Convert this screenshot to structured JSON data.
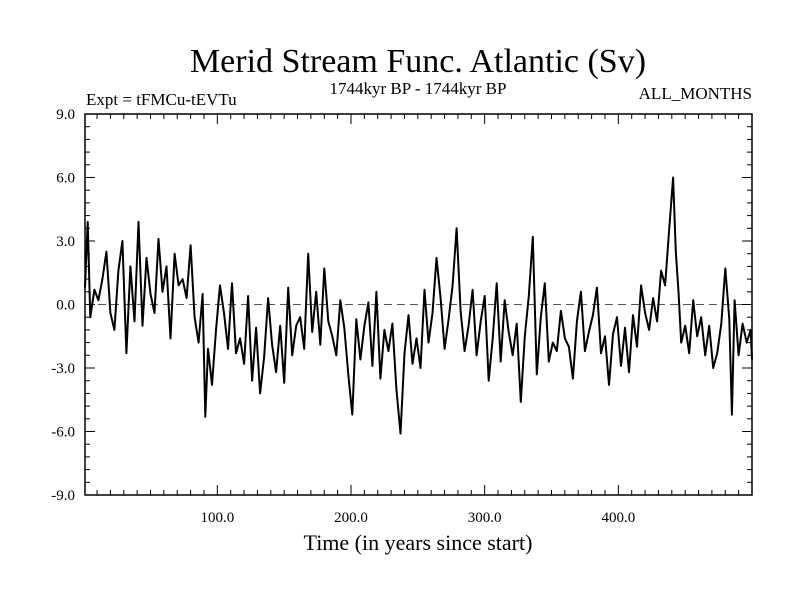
{
  "chart_data": {
    "type": "line",
    "title": "Merid Stream Func. Atlantic (Sv)",
    "subtitle_left": "Expt = tFMCu-tEVTu",
    "subtitle_center": "1744kyr BP - 1744kyr BP",
    "subtitle_right": "ALL_MONTHS",
    "xlabel": "Time (in years since start)",
    "ylabel": "",
    "xlim": [
      1,
      500
    ],
    "ylim": [
      -9,
      9
    ],
    "x_ticks": [
      {
        "value": 100,
        "label": "100.0"
      },
      {
        "value": 200,
        "label": "200.0"
      },
      {
        "value": 300,
        "label": "300.0"
      },
      {
        "value": 400,
        "label": "400.0"
      }
    ],
    "y_ticks": [
      {
        "value": 9,
        "label": "9.0"
      },
      {
        "value": 6,
        "label": "6.0"
      },
      {
        "value": 3,
        "label": "3.0"
      },
      {
        "value": 0,
        "label": "0.0"
      },
      {
        "value": -3,
        "label": "-3.0"
      },
      {
        "value": -6,
        "label": "-6.0"
      },
      {
        "value": -9,
        "label": "-9.0"
      }
    ],
    "reference_line": 0,
    "series": [
      {
        "name": "Merid Stream Func. Atlantic",
        "x": [
          1,
          3,
          5,
          8,
          11,
          14,
          17,
          20,
          23,
          26,
          29,
          32,
          35,
          38,
          41,
          44,
          47,
          50,
          53,
          56,
          59,
          62,
          65,
          68,
          71,
          74,
          77,
          80,
          83,
          86,
          89,
          91,
          93,
          96,
          99,
          102,
          105,
          108,
          111,
          114,
          117,
          120,
          123,
          126,
          129,
          132,
          135,
          138,
          141,
          144,
          147,
          150,
          153,
          156,
          159,
          162,
          165,
          168,
          171,
          174,
          177,
          180,
          183,
          186,
          189,
          192,
          195,
          198,
          201,
          204,
          207,
          210,
          213,
          216,
          219,
          222,
          225,
          228,
          231,
          234,
          237,
          240,
          243,
          246,
          249,
          252,
          255,
          258,
          261,
          264,
          267,
          270,
          273,
          276,
          279,
          282,
          285,
          288,
          291,
          294,
          297,
          300,
          303,
          306,
          309,
          312,
          315,
          318,
          321,
          324,
          327,
          330,
          333,
          336,
          339,
          342,
          345,
          348,
          351,
          354,
          357,
          360,
          363,
          366,
          369,
          372,
          375,
          378,
          381,
          384,
          387,
          390,
          393,
          396,
          399,
          402,
          405,
          408,
          411,
          414,
          417,
          420,
          423,
          426,
          429,
          432,
          435,
          438,
          441,
          443,
          445,
          447,
          450,
          453,
          456,
          459,
          462,
          465,
          468,
          471,
          474,
          477,
          480,
          483,
          485,
          487,
          490,
          493,
          496,
          499,
          500
        ],
        "values": [
          0.8,
          3.9,
          -0.6,
          0.7,
          0.2,
          1.2,
          2.5,
          -0.4,
          -1.2,
          1.6,
          3.0,
          -2.3,
          1.8,
          -0.8,
          3.9,
          -1.0,
          2.2,
          0.5,
          -0.4,
          3.1,
          0.6,
          1.8,
          -1.6,
          2.4,
          0.9,
          1.2,
          0.3,
          2.8,
          -0.6,
          -1.8,
          0.5,
          -5.3,
          -2.1,
          -3.8,
          -1.2,
          0.9,
          -0.4,
          -2.1,
          1.0,
          -2.3,
          -1.6,
          -2.8,
          0.4,
          -3.6,
          -1.1,
          -4.2,
          -2.5,
          0.3,
          -1.9,
          -3.2,
          -1.0,
          -3.7,
          0.8,
          -2.4,
          -1.0,
          -0.6,
          -2.1,
          2.4,
          -1.3,
          0.6,
          -1.9,
          1.7,
          -0.8,
          -1.5,
          -2.4,
          0.2,
          -1.1,
          -3.3,
          -5.2,
          -0.7,
          -2.6,
          -1.0,
          0.1,
          -2.9,
          0.6,
          -3.5,
          -1.2,
          -2.2,
          -0.9,
          -4.0,
          -6.1,
          -2.3,
          -0.5,
          -2.8,
          -1.6,
          -3.0,
          0.7,
          -1.8,
          -0.4,
          2.2,
          0.3,
          -2.1,
          -0.7,
          0.9,
          3.6,
          -0.3,
          -2.2,
          -1.0,
          0.7,
          -2.4,
          -0.8,
          0.4,
          -3.6,
          -1.6,
          1.0,
          -2.7,
          0.2,
          -1.3,
          -2.4,
          -0.9,
          -4.6,
          -1.5,
          0.4,
          3.2,
          -3.3,
          -0.6,
          1.0,
          -2.7,
          -1.8,
          -2.2,
          -0.3,
          -1.6,
          -2.0,
          -3.5,
          -0.8,
          0.6,
          -2.2,
          -1.3,
          -0.5,
          0.8,
          -2.3,
          -1.5,
          -3.8,
          -1.4,
          -0.6,
          -2.9,
          -1.1,
          -3.2,
          -0.5,
          -2.0,
          0.9,
          -0.4,
          -1.2,
          0.3,
          -0.8,
          1.6,
          0.9,
          3.5,
          6.0,
          2.5,
          0.6,
          -1.8,
          -1.0,
          -2.3,
          0.2,
          -1.5,
          -0.6,
          -2.4,
          -1.0,
          -3.0,
          -2.3,
          -0.9,
          1.7,
          -0.7,
          -5.2,
          0.2,
          -2.4,
          -0.9,
          -1.8,
          -1.2,
          -2.6
        ]
      }
    ]
  }
}
